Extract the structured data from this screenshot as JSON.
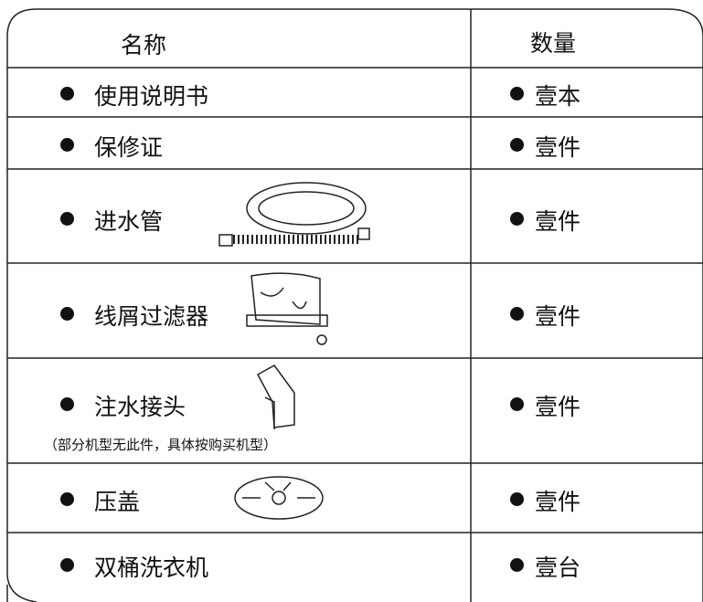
{
  "header": {
    "name": "名称",
    "quantity": "数量"
  },
  "rows": [
    {
      "item": "使用说明书",
      "quantity": "壹本"
    },
    {
      "item": "保修证",
      "quantity": "壹件"
    },
    {
      "item": "进水管",
      "quantity": "壹件"
    },
    {
      "item": "线屑过滤器",
      "quantity": "壹件"
    },
    {
      "item": "注水接头",
      "quantity": "壹件",
      "note": "（部分机型无此件，具体按购买机型）"
    },
    {
      "item": "压盖",
      "quantity": "壹件"
    },
    {
      "item": "双桶洗衣机",
      "quantity": "壹台"
    }
  ]
}
